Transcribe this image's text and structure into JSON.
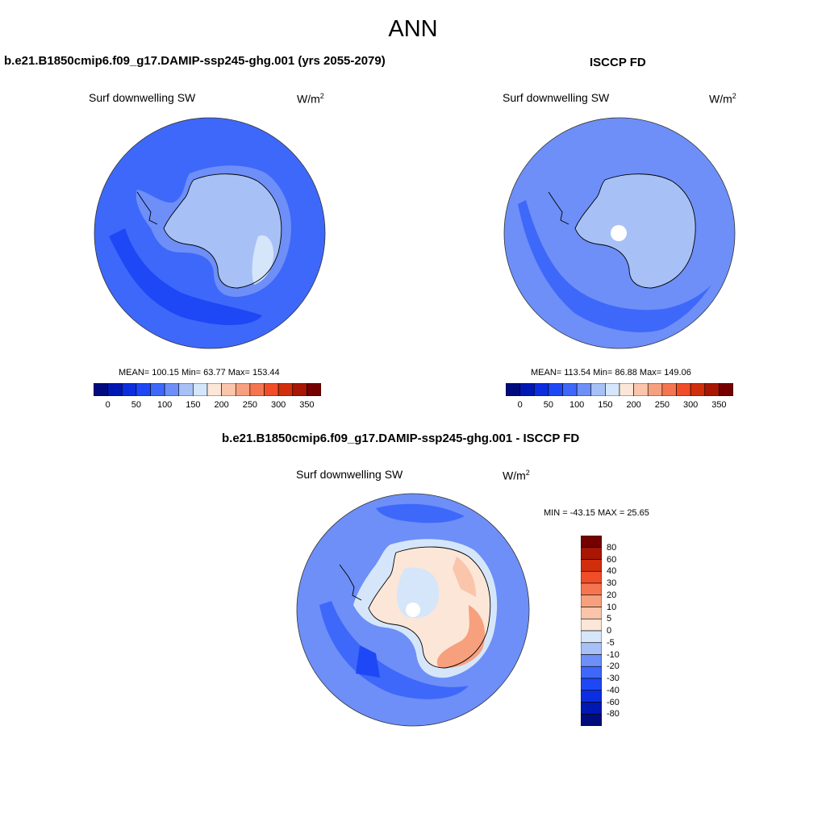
{
  "figure": {
    "season": "ANN"
  },
  "panels": [
    {
      "title": "b.e21.B1850cmip6.f09_g17.DAMIP-ssp245-ghg.001 (yrs 2055-2079)",
      "variable": "Surf downwelling SW",
      "units_base": "W/m",
      "units_exp": "2",
      "stats": "MEAN= 100.15  Min=  63.77  Max= 153.44"
    },
    {
      "title": "ISCCP FD",
      "variable": "Surf downwelling SW",
      "units_base": "W/m",
      "units_exp": "2",
      "stats": "MEAN= 113.54  Min=  86.88  Max= 149.06"
    },
    {
      "title": "b.e21.B1850cmip6.f09_g17.DAMIP-ssp245-ghg.001 - ISCCP FD",
      "variable": "Surf downwelling SW",
      "units_base": "W/m",
      "units_exp": "2",
      "stats": "MIN = -43.15 MAX =  25.65"
    }
  ],
  "colorbar_main": {
    "colors": [
      "#000c7d",
      "#0018b3",
      "#0c2ee0",
      "#1e48f5",
      "#3e68fa",
      "#6d8ff7",
      "#a7c1f7",
      "#d5e6fa",
      "#fce6d7",
      "#fac5ab",
      "#f7a07e",
      "#f57550",
      "#f04d28",
      "#d12e0e",
      "#a81604",
      "#750000"
    ],
    "labels": [
      "0",
      "50",
      "100",
      "150",
      "200",
      "250",
      "300",
      "350"
    ]
  },
  "colorbar_diff": {
    "colors": [
      "#000c7d",
      "#0018b3",
      "#0c2ee0",
      "#1e48f5",
      "#3e68fa",
      "#6d8ff7",
      "#a7c1f7",
      "#d5e6fa",
      "#fce6d7",
      "#fac5ab",
      "#f7a07e",
      "#f57550",
      "#f04d28",
      "#d12e0e",
      "#a81604",
      "#750000"
    ],
    "labels": [
      "80",
      "60",
      "40",
      "30",
      "20",
      "10",
      "5",
      "0",
      "-5",
      "-10",
      "-20",
      "-30",
      "-40",
      "-60",
      "-80"
    ]
  },
  "map_colors": {
    "ocean_mid": "#3e68fa",
    "ocean_dark": "#1e48f5",
    "ocean_light": "#6d8ff7",
    "ice_light": "#a7c1f7",
    "ice_pale": "#d5e6fa",
    "warm_pale": "#fce6d7",
    "warm_mid": "#fac5ab",
    "warm_strong": "#f7a07e"
  }
}
